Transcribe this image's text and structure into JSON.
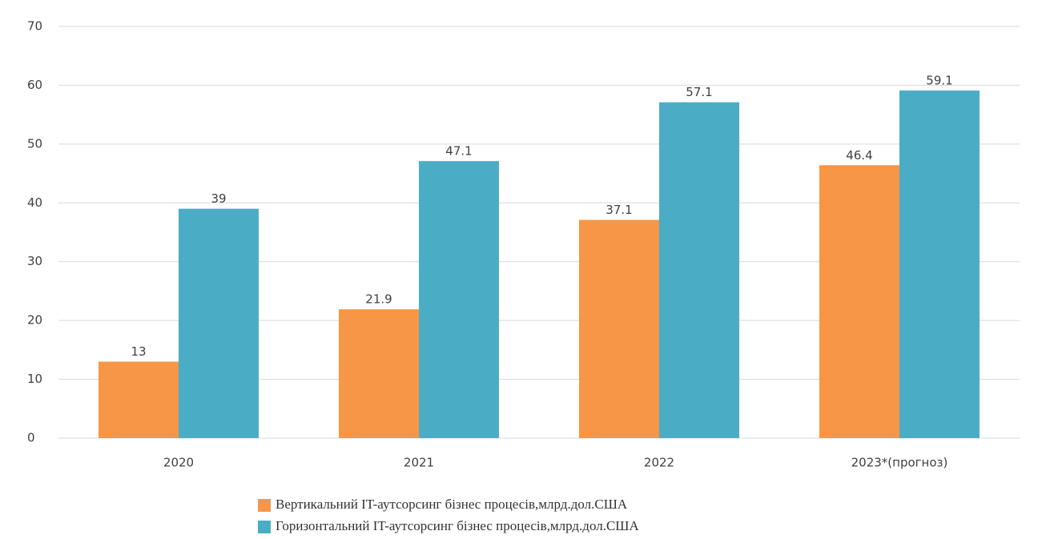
{
  "chart_data": {
    "type": "bar",
    "categories": [
      "2020",
      "2021",
      "2022",
      "2023*(прогноз)"
    ],
    "series": [
      {
        "name": "Вертикальний IT-аутсорсинг бізнес процесів,млрд.дол.США",
        "color": "#f79646",
        "values": [
          13,
          21.9,
          37.1,
          46.4
        ]
      },
      {
        "name": "Горизонтальний IT-аутсорсинг бізнес процесів,млрд.дол.США",
        "color": "#4bacc6",
        "values": [
          39,
          47.1,
          57.1,
          59.1
        ]
      }
    ],
    "ylim": [
      0,
      70
    ],
    "yticks": [
      0,
      10,
      20,
      30,
      40,
      50,
      60,
      70
    ],
    "grid": true,
    "legend": "bottom"
  }
}
